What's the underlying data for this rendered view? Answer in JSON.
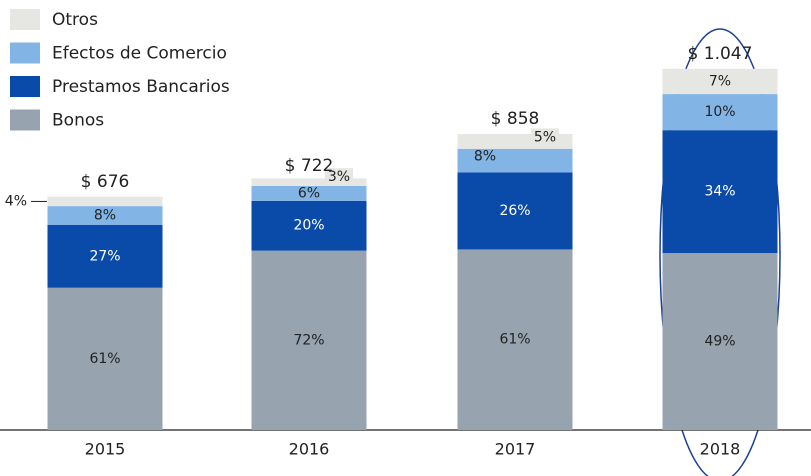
{
  "chart_data": {
    "type": "stacked_bar",
    "categories": [
      "2015",
      "2016",
      "2017",
      "2018"
    ],
    "series": [
      {
        "name": "Bonos",
        "color": "#97a3ae",
        "values": [
          61,
          72,
          61,
          49
        ]
      },
      {
        "name": "Prestamos Bancarios",
        "color": "#0a4aa8",
        "values": [
          27,
          20,
          26,
          34
        ]
      },
      {
        "name": "Efectos de Comercio",
        "color": "#82b5e6",
        "values": [
          8,
          6,
          8,
          10
        ]
      },
      {
        "name": "Otros",
        "color": "#e6e6e3",
        "values": [
          4,
          3,
          5,
          7
        ]
      }
    ],
    "value_labels_series": [
      [
        "61%",
        "72%",
        "61%",
        "49%"
      ],
      [
        "27%",
        "20%",
        "26%",
        "34%"
      ],
      [
        "8%",
        "6%",
        "8%",
        "10%"
      ],
      [
        "4%",
        "3%",
        "5%",
        "7%"
      ]
    ],
    "totals": {
      "values": [
        676,
        722,
        858,
        1047
      ],
      "value_labels": [
        "$ 676",
        "$ 722",
        "$ 858",
        "$ 1.047"
      ]
    }
  }
}
